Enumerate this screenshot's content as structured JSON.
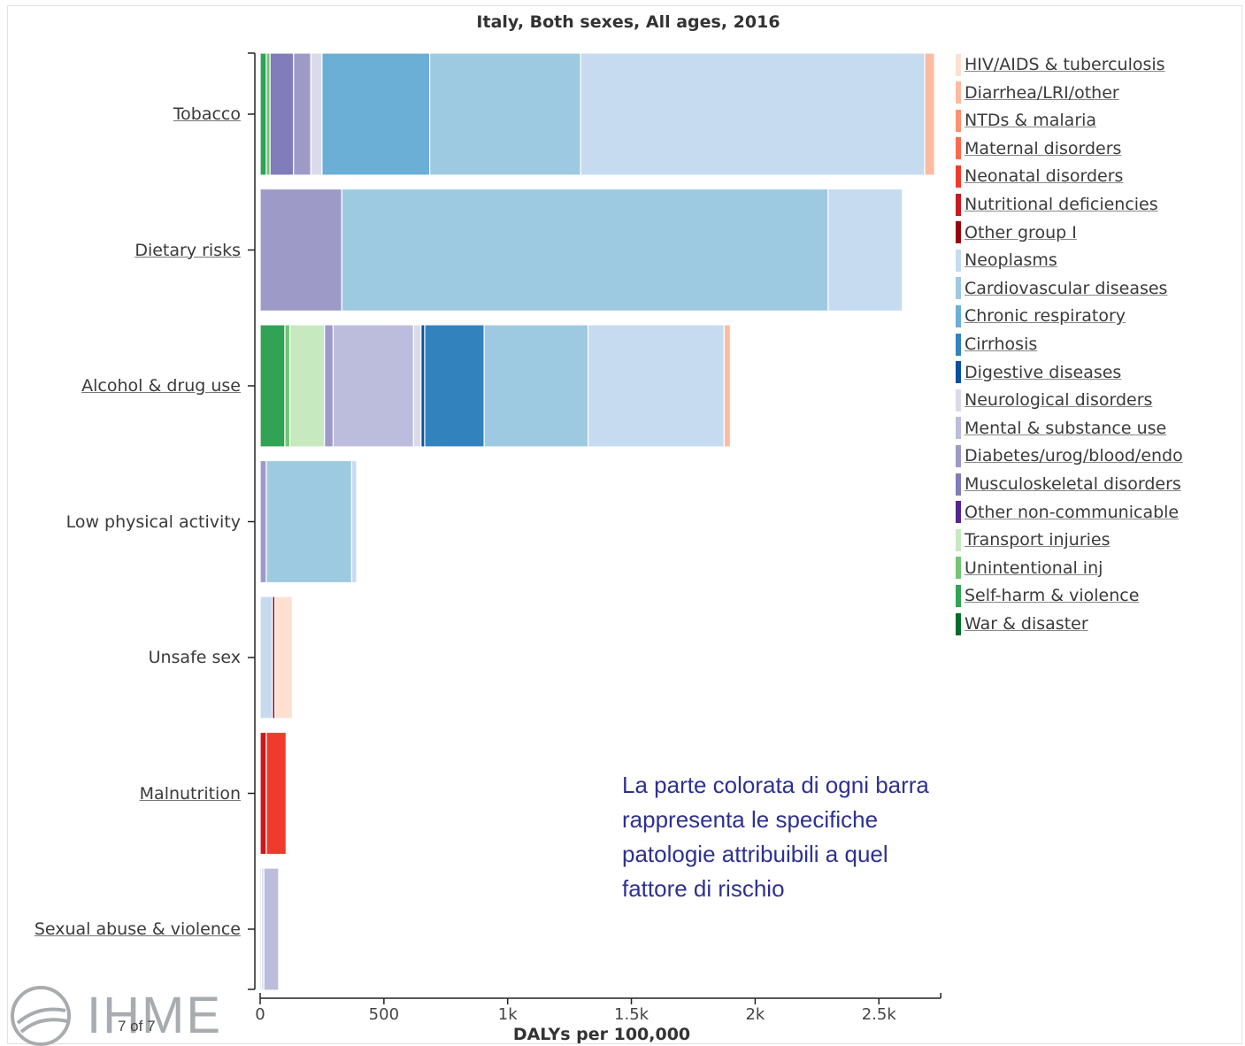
{
  "chart_data": {
    "type": "bar",
    "orientation": "horizontal",
    "stacked": true,
    "title": "Italy, Both sexes, All ages, 2016",
    "xlabel": "DALYs per 100,000",
    "xlim": [
      0,
      2750
    ],
    "x_ticks": [
      {
        "value": 0,
        "label": "0"
      },
      {
        "value": 500,
        "label": "500"
      },
      {
        "value": 1000,
        "label": "1k"
      },
      {
        "value": 1500,
        "label": "1.5k"
      },
      {
        "value": 2000,
        "label": "2k"
      },
      {
        "value": 2500,
        "label": "2.5k"
      }
    ],
    "grid": false,
    "legend_position": "right",
    "categories": [
      {
        "name": "Tobacco",
        "link": true
      },
      {
        "name": "Dietary risks",
        "link": true
      },
      {
        "name": "Alcohol & drug use",
        "link": true
      },
      {
        "name": "Low physical activity",
        "link": false
      },
      {
        "name": "Unsafe sex",
        "link": false
      },
      {
        "name": "Malnutrition",
        "link": true
      },
      {
        "name": "Sexual abuse & violence",
        "link": true
      }
    ],
    "causes": [
      {
        "name": "HIV/AIDS & tuberculosis",
        "color": "#fde0d2"
      },
      {
        "name": "Diarrhea/LRI/other",
        "color": "#fcbba1"
      },
      {
        "name": "NTDs & malaria",
        "color": "#fc9272"
      },
      {
        "name": "Maternal disorders",
        "color": "#fb6a4a"
      },
      {
        "name": "Neonatal disorders",
        "color": "#ef3b2c"
      },
      {
        "name": "Nutritional deficiencies",
        "color": "#cb181d"
      },
      {
        "name": "Other group I",
        "color": "#99000d"
      },
      {
        "name": "Neoplasms",
        "color": "#c6dbef"
      },
      {
        "name": "Cardiovascular diseases",
        "color": "#9ecae1"
      },
      {
        "name": "Chronic respiratory",
        "color": "#6baed6"
      },
      {
        "name": "Cirrhosis",
        "color": "#3182bd"
      },
      {
        "name": "Digestive diseases",
        "color": "#08519c"
      },
      {
        "name": "Neurological disorders",
        "color": "#dadaeb"
      },
      {
        "name": "Mental & substance use",
        "color": "#bcbddc"
      },
      {
        "name": "Diabetes/urog/blood/endo",
        "color": "#9e9ac8"
      },
      {
        "name": "Musculoskeletal disorders",
        "color": "#807dba"
      },
      {
        "name": "Other non-communicable",
        "color": "#54278f"
      },
      {
        "name": "Transport injuries",
        "color": "#c7e9c0"
      },
      {
        "name": "Unintentional inj",
        "color": "#74c476"
      },
      {
        "name": "Self-harm & violence",
        "color": "#31a354"
      },
      {
        "name": "War & disaster",
        "color": "#006d2c"
      }
    ],
    "stacks": [
      [
        {
          "cause": "Self-harm & violence",
          "value": 25
        },
        {
          "cause": "Unintentional inj",
          "value": 15
        },
        {
          "cause": "Musculoskeletal disorders",
          "value": 95
        },
        {
          "cause": "Diabetes/urog/blood/endo",
          "value": 70
        },
        {
          "cause": "Neurological disorders",
          "value": 45
        },
        {
          "cause": "Chronic respiratory",
          "value": 435
        },
        {
          "cause": "Cardiovascular diseases",
          "value": 610
        },
        {
          "cause": "Neoplasms",
          "value": 1390
        },
        {
          "cause": "Diarrhea/LRI/other",
          "value": 40
        }
      ],
      [
        {
          "cause": "Diabetes/urog/blood/endo",
          "value": 330
        },
        {
          "cause": "Cardiovascular diseases",
          "value": 1965
        },
        {
          "cause": "Neoplasms",
          "value": 300
        }
      ],
      [
        {
          "cause": "Self-harm & violence",
          "value": 100
        },
        {
          "cause": "Unintentional inj",
          "value": 20
        },
        {
          "cause": "Transport injuries",
          "value": 140
        },
        {
          "cause": "Diabetes/urog/blood/endo",
          "value": 35
        },
        {
          "cause": "Mental & substance use",
          "value": 325
        },
        {
          "cause": "Neurological disorders",
          "value": 30
        },
        {
          "cause": "Digestive diseases",
          "value": 15
        },
        {
          "cause": "Cirrhosis",
          "value": 240
        },
        {
          "cause": "Cardiovascular diseases",
          "value": 420
        },
        {
          "cause": "Neoplasms",
          "value": 550
        },
        {
          "cause": "Diarrhea/LRI/other",
          "value": 25
        }
      ],
      [
        {
          "cause": "Diabetes/urog/blood/endo",
          "value": 25
        },
        {
          "cause": "Cardiovascular diseases",
          "value": 345
        },
        {
          "cause": "Neoplasms",
          "value": 20
        }
      ],
      [
        {
          "cause": "Neoplasms",
          "value": 50
        },
        {
          "cause": "Other group I",
          "value": 10
        },
        {
          "cause": "HIV/AIDS & tuberculosis",
          "value": 70
        }
      ],
      [
        {
          "cause": "Nutritional deficiencies",
          "value": 25
        },
        {
          "cause": "Neonatal disorders",
          "value": 80
        }
      ],
      [
        {
          "cause": "Self-harm & violence",
          "value": 5
        },
        {
          "cause": "Neurological disorders",
          "value": 10
        },
        {
          "cause": "Mental & substance use",
          "value": 60
        }
      ]
    ]
  },
  "annotation": {
    "lines": [
      "La parte colorata di ogni barra",
      "rappresenta le specifiche",
      "patologie attribuibili a quel",
      "fattore di rischio"
    ]
  },
  "footer": {
    "logo_text": "IHME",
    "page_indicator": "7 of 7"
  }
}
